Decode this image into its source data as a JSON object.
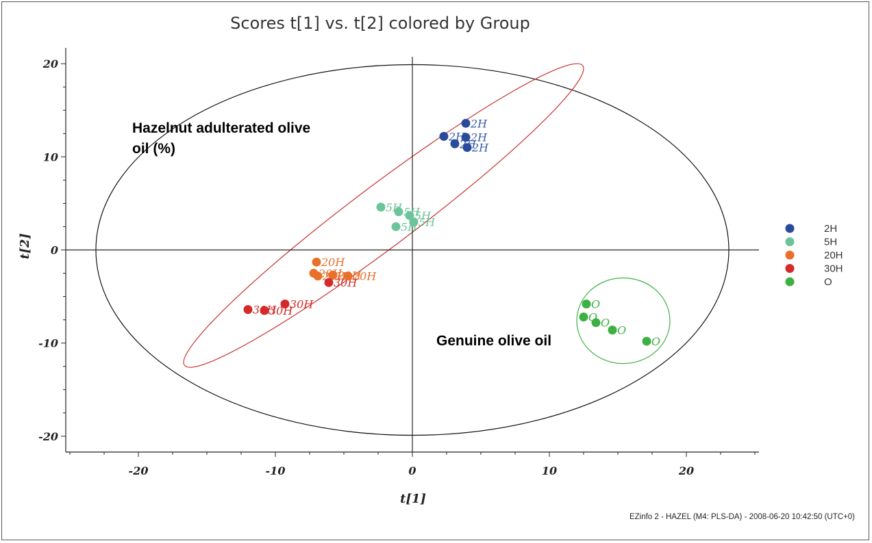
{
  "chart_data": {
    "type": "scatter",
    "title": "Scores t[1] vs. t[2] colored by Group",
    "xlabel": "t[1]",
    "ylabel": "t[2]",
    "xlim": [
      -25.3,
      25.3
    ],
    "ylim": [
      -21.7,
      21.7
    ],
    "xticks": [
      -20,
      -10,
      0,
      10,
      20
    ],
    "yticks": [
      20,
      10,
      0,
      -10,
      -20
    ],
    "grid": false,
    "legend_position": "right",
    "series": [
      {
        "name": "2H",
        "color": "#2a4b9b",
        "label_color": "#3a5aa8",
        "points": [
          [
            3.9,
            13.6
          ],
          [
            2.3,
            12.2
          ],
          [
            3.9,
            12.1
          ],
          [
            3.1,
            11.4
          ],
          [
            4.0,
            11.0
          ]
        ]
      },
      {
        "name": "5H",
        "color": "#6cc49a",
        "label_color": "#6cc49a",
        "points": [
          [
            -2.3,
            4.6
          ],
          [
            -1.0,
            4.1
          ],
          [
            -0.2,
            3.7
          ],
          [
            0.1,
            3.0
          ],
          [
            -1.2,
            2.5
          ]
        ]
      },
      {
        "name": "20H",
        "color": "#e8702a",
        "label_color": "#e8702a",
        "points": [
          [
            -7.0,
            -1.3
          ],
          [
            -7.2,
            -2.5
          ],
          [
            -6.9,
            -2.8
          ],
          [
            -5.8,
            -2.7
          ],
          [
            -4.7,
            -2.8
          ]
        ]
      },
      {
        "name": "30H",
        "color": "#d42a2a",
        "label_color": "#d42a2a",
        "points": [
          [
            -6.1,
            -3.5
          ],
          [
            -9.3,
            -5.8
          ],
          [
            -12.0,
            -6.4
          ],
          [
            -10.8,
            -6.5
          ]
        ]
      },
      {
        "name": "O",
        "color": "#3db043",
        "label_color": "#3db043",
        "points": [
          [
            12.7,
            -5.8
          ],
          [
            12.5,
            -7.2
          ],
          [
            13.4,
            -7.8
          ],
          [
            14.6,
            -8.6
          ],
          [
            17.1,
            -9.8
          ]
        ]
      }
    ],
    "annotations": [
      {
        "id": "hazelnut",
        "lines": [
          "Hazelnut adulterated olive",
          "oil (%)"
        ]
      },
      {
        "id": "genuine",
        "lines": [
          "Genuine olive oil"
        ]
      }
    ],
    "ellipses": [
      {
        "name": "hotelling-t2",
        "color": "#111111",
        "cx": 0,
        "cy": 0,
        "rx": 23.1,
        "ry": 19.9,
        "angle_deg": 0
      },
      {
        "name": "adulterated-group",
        "color": "#c8302a",
        "cx": -2.1,
        "cy": 3.7,
        "rx": 18.2,
        "ry": 3.3,
        "angle_deg": 37
      },
      {
        "name": "olive-group",
        "color": "#3db043",
        "cx": 15.4,
        "cy": -7.6,
        "rx": 3.4,
        "ry": 4.6,
        "angle_deg": 0
      }
    ],
    "footer": "EZinfo 2 - HAZEL (M4: PLS-DA) - 2008-06-20 10:42:50 (UTC+0)"
  }
}
